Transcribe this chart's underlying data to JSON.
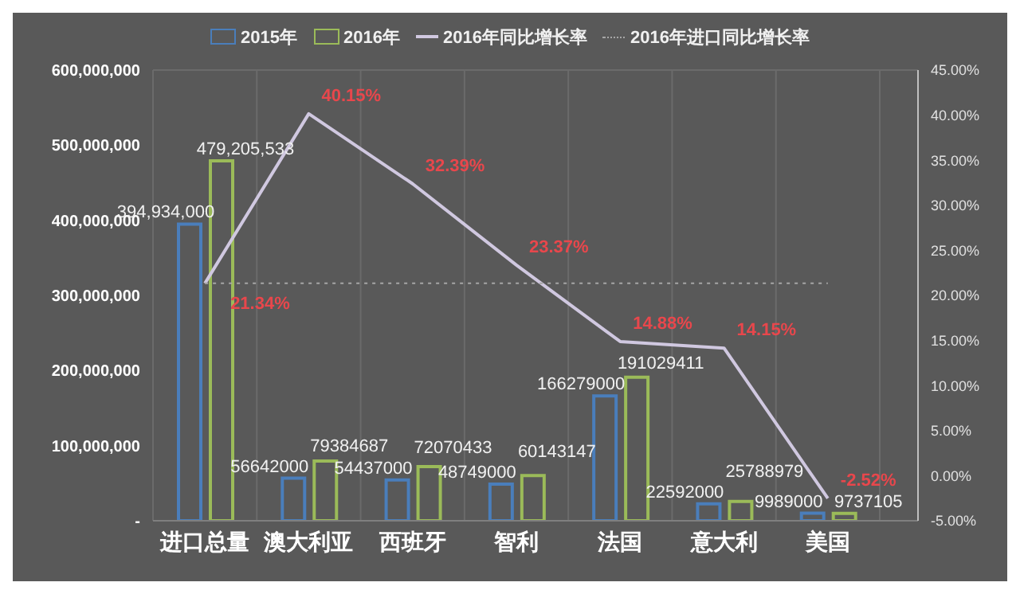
{
  "chart_data": {
    "type": "bar",
    "categories": [
      "进口总量",
      "澳大利亚",
      "西班牙",
      "智利",
      "法国",
      "意大利",
      "美国"
    ],
    "series": [
      {
        "name": "2015年",
        "color": "#4a7ebb",
        "values": [
          394934000,
          56642000,
          54437000,
          48749000,
          166279000,
          22592000,
          9989000
        ],
        "value_labels": [
          "394,934,000",
          "56642000",
          "54437000",
          "48749000",
          "166279000",
          "22592000",
          "9989000"
        ]
      },
      {
        "name": "2016年",
        "color": "#9bbb59",
        "values": [
          479205533,
          79384687,
          72070433,
          60143147,
          191029411,
          25788979,
          9737105
        ],
        "value_labels": [
          "479,205,533",
          "79384687",
          "72070433",
          "60143147",
          "191029411",
          "25788979",
          "9737105"
        ]
      },
      {
        "name": "2016年同比增长率",
        "type": "line",
        "axis": "y2",
        "color": "#d0c8e0",
        "line_style": "solid",
        "values": [
          21.34,
          40.15,
          32.39,
          23.37,
          14.88,
          14.15,
          -2.52
        ],
        "value_labels": [
          "21.34%",
          "40.15%",
          "32.39%",
          "23.37%",
          "14.88%",
          "14.15%",
          "-2.52%"
        ]
      },
      {
        "name": "2016年进口同比增长率",
        "type": "line",
        "axis": "y2",
        "color": "#a6a6a6",
        "line_style": "dotted",
        "values": [
          21.34,
          21.34,
          21.34,
          21.34,
          21.34,
          21.34,
          21.34
        ]
      }
    ],
    "ylim": [
      0,
      600000000
    ],
    "yticks": [
      {
        "value": 0,
        "label": "-"
      },
      {
        "value": 100000000,
        "label": "100,000,000"
      },
      {
        "value": 200000000,
        "label": "200,000,000"
      },
      {
        "value": 300000000,
        "label": "300,000,000"
      },
      {
        "value": 400000000,
        "label": "400,000,000"
      },
      {
        "value": 500000000,
        "label": "500,000,000"
      },
      {
        "value": 600000000,
        "label": "600,000,000"
      }
    ],
    "y2lim": [
      -5,
      45
    ],
    "y2ticks": [
      {
        "value": -5,
        "label": "-5.00%"
      },
      {
        "value": 0,
        "label": "0.00%"
      },
      {
        "value": 5,
        "label": "5.00%"
      },
      {
        "value": 10,
        "label": "10.00%"
      },
      {
        "value": 15,
        "label": "15.00%"
      },
      {
        "value": 20,
        "label": "20.00%"
      },
      {
        "value": 25,
        "label": "25.00%"
      },
      {
        "value": 30,
        "label": "30.00%"
      },
      {
        "value": 35,
        "label": "35.00%"
      },
      {
        "value": 40,
        "label": "40.00%"
      },
      {
        "value": 45,
        "label": "45.00%"
      }
    ],
    "grid": true,
    "legend": "top",
    "marker": "none"
  }
}
